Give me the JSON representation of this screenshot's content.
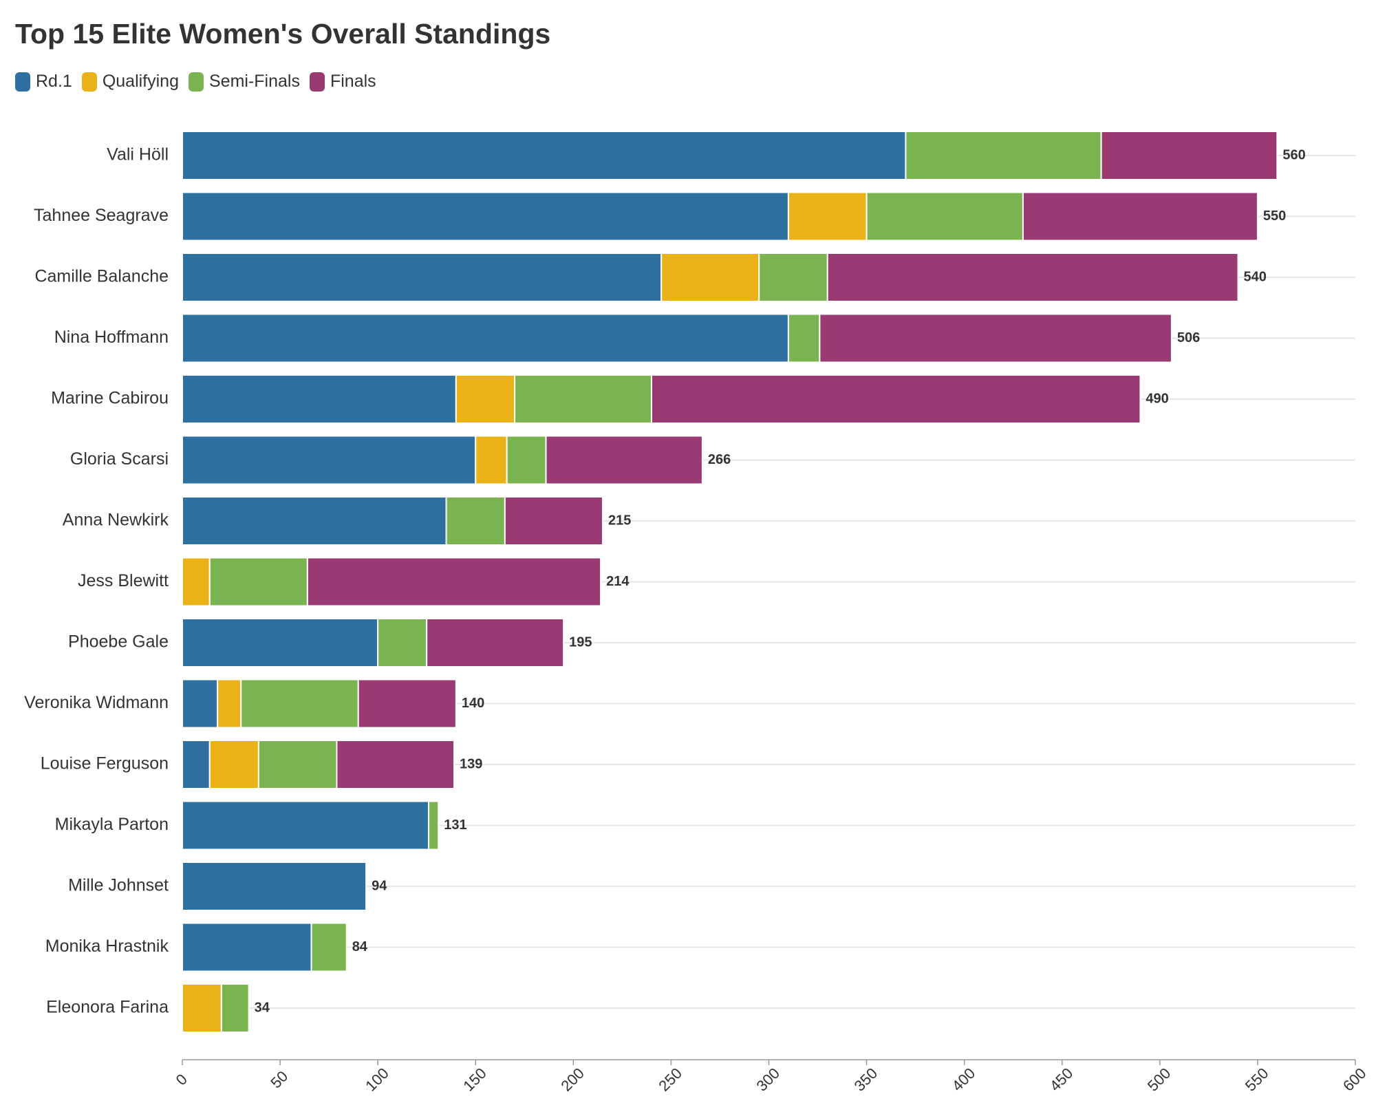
{
  "chart_data": {
    "type": "bar",
    "orientation": "horizontal",
    "stacked": true,
    "title": "Top 15 Elite Women's Overall Standings",
    "categories": [
      "Vali Höll",
      "Tahnee Seagrave",
      "Camille Balanche",
      "Nina Hoffmann",
      "Marine Cabirou",
      "Gloria Scarsi",
      "Anna Newkirk",
      "Jess Blewitt",
      "Phoebe Gale",
      "Veronika Widmann",
      "Louise Ferguson",
      "Mikayla Parton",
      "Mille Johnset",
      "Monika Hrastnik",
      "Eleonora Farina"
    ],
    "series": [
      {
        "name": "Rd.1",
        "color": "#2e709f",
        "values": [
          370,
          310,
          245,
          310,
          140,
          150,
          135,
          0,
          100,
          18,
          14,
          126,
          94,
          66,
          0
        ]
      },
      {
        "name": "Qualifying",
        "color": "#eab217",
        "values": [
          0,
          40,
          50,
          0,
          30,
          16,
          0,
          14,
          0,
          12,
          25,
          0,
          0,
          0,
          20
        ]
      },
      {
        "name": "Semi-Finals",
        "color": "#7ab450",
        "values": [
          100,
          80,
          35,
          16,
          70,
          20,
          30,
          50,
          25,
          60,
          40,
          5,
          0,
          18,
          14
        ]
      },
      {
        "name": "Finals",
        "color": "#9a3a72",
        "values": [
          90,
          120,
          210,
          180,
          250,
          80,
          50,
          150,
          70,
          50,
          60,
          0,
          0,
          0,
          0
        ]
      }
    ],
    "totals": [
      "560",
      "550",
      "540",
      "506",
      "490",
      "266",
      "215",
      "214",
      "195",
      "140",
      "139",
      "131",
      "94",
      "84",
      "34"
    ],
    "x_ticks": [
      "0",
      "50",
      "100",
      "150",
      "200",
      "250",
      "300",
      "350",
      "400",
      "450",
      "500",
      "550",
      "600"
    ],
    "xlim": [
      0,
      600
    ],
    "grid": true,
    "legend_position": "top-left"
  }
}
